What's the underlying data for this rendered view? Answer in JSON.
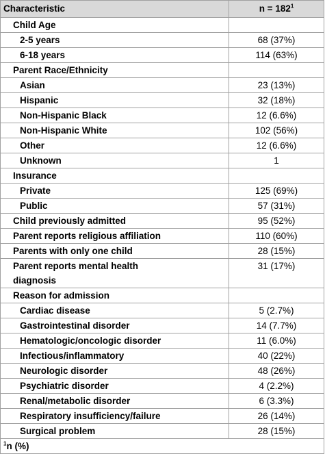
{
  "header": {
    "characteristic": "Characteristic",
    "n": "n = 182",
    "n_mark": "1"
  },
  "rows": [
    {
      "label": "Child Age",
      "items": [
        {
          "label": "2-5 years",
          "value": "68 (37%)"
        },
        {
          "label": "6-18 years",
          "value": "114 (63%)"
        }
      ]
    },
    {
      "label": "Parent Race/Ethnicity",
      "items": [
        {
          "label": "Asian",
          "value": "23 (13%)"
        },
        {
          "label": "Hispanic",
          "value": "32 (18%)"
        },
        {
          "label": "Non-Hispanic Black",
          "value": "12 (6.6%)"
        },
        {
          "label": "Non-Hispanic White",
          "value": "102 (56%)"
        },
        {
          "label": "Other",
          "value": "12 (6.6%)"
        },
        {
          "label": "Unknown",
          "value": "1"
        }
      ]
    },
    {
      "label": "Insurance",
      "items": [
        {
          "label": "Private",
          "value": "125 (69%)"
        },
        {
          "label": "Public",
          "value": "57 (31%)"
        }
      ]
    },
    {
      "label": "Child previously admitted",
      "value": "95 (52%)"
    },
    {
      "label": "Parent reports religious affiliation",
      "value": "110 (60%)"
    },
    {
      "label": "Parents with only one child",
      "value": "28 (15%)"
    },
    {
      "label": "Parent reports mental health diagnosis",
      "value": "31 (17%)"
    },
    {
      "label": "Reason for admission",
      "items": [
        {
          "label": "Cardiac disease",
          "value": "5 (2.7%)"
        },
        {
          "label": "Gastrointestinal disorder",
          "value": "14 (7.7%)"
        },
        {
          "label": "Hematologic/oncologic disorder",
          "value": "11 (6.0%)"
        },
        {
          "label": "Infectious/inflammatory",
          "value": "40 (22%)"
        },
        {
          "label": "Neurologic disorder",
          "value": "48 (26%)"
        },
        {
          "label": "Psychiatric disorder",
          "value": "4 (2.2%)"
        },
        {
          "label": "Renal/metabolic disorder",
          "value": "6 (3.3%)"
        },
        {
          "label": "Respiratory insufficiency/failure",
          "value": "26 (14%)"
        },
        {
          "label": "Surgical problem",
          "value": "28 (15%)"
        }
      ]
    }
  ],
  "footnote": {
    "mark": "1",
    "text": "n (%)"
  }
}
